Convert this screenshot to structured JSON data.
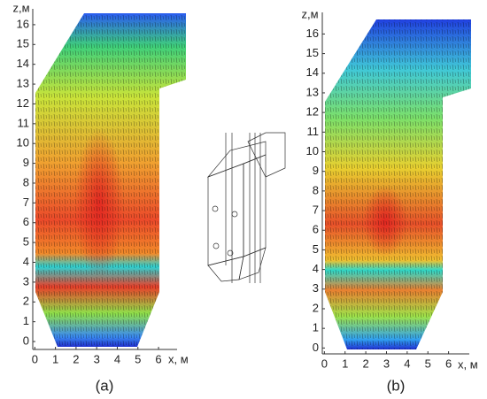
{
  "chart_data": [
    {
      "type": "contour",
      "caption": "(a)",
      "ylabel": "z,м",
      "xlabel": "x, м",
      "xlim": [
        -0.1,
        6.9
      ],
      "ylim": [
        -0.4,
        16.8
      ],
      "xticks": [
        0,
        1,
        2,
        3,
        4,
        5,
        6
      ],
      "yticks": [
        0,
        1,
        2,
        3,
        4,
        5,
        6,
        7,
        8,
        9,
        10,
        11,
        12,
        13,
        14,
        15,
        16
      ]
    },
    {
      "type": "contour",
      "caption": "(b)",
      "ylabel": "z,м",
      "xlabel": "x, м",
      "xlim": [
        -0.1,
        7.0
      ],
      "ylim": [
        -0.3,
        17.1
      ],
      "xticks": [
        0,
        1,
        2,
        3,
        4,
        5,
        6
      ],
      "yticks": [
        0,
        1,
        2,
        3,
        4,
        5,
        6,
        7,
        8,
        9,
        10,
        11,
        12,
        13,
        14,
        15,
        16
      ]
    }
  ]
}
